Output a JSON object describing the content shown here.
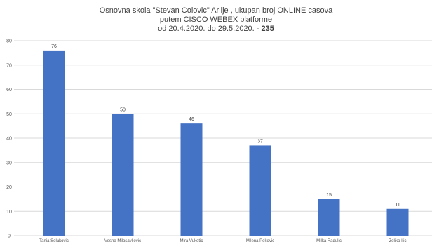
{
  "chart_data": {
    "type": "bar",
    "title_lines": [
      "Osnovna skola \"Stevan Colovic\" Arilje , ukupan broj ONLINE casova",
      "putem CISCO WEBEX platforme",
      "od 20.4.2020. do 29.5.2020. -"
    ],
    "title_total": "235",
    "categories": [
      "Tanja Selakovic",
      "Vesna Milosavljevic",
      "Mira Vukotic",
      "Milena Pekovic",
      "Milka Radulic",
      "Zeljko Ilic"
    ],
    "values": [
      76,
      50,
      46,
      37,
      15,
      11
    ],
    "data_labels": [
      "76",
      "50",
      "46",
      "37",
      "15",
      "11"
    ],
    "yticks": [
      "0",
      "10",
      "20",
      "30",
      "40",
      "50",
      "60",
      "70",
      "80"
    ],
    "ylim": [
      0,
      80
    ],
    "xlabel": "",
    "ylabel": "",
    "grid": true,
    "legend": "none",
    "colors": {
      "bar": "#4472C4",
      "grid": "#d9d9d9",
      "text": "#404040"
    }
  }
}
